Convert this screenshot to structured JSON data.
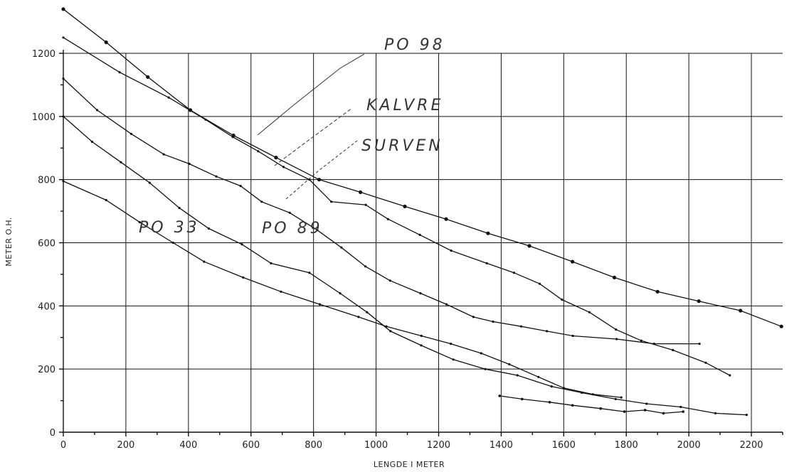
{
  "chart_data": {
    "type": "line",
    "xlabel": "LENGDE I METER",
    "ylabel": "METER O.H.",
    "xlim": [
      0,
      2300
    ],
    "ylim": [
      0,
      1200
    ],
    "x_ticks": [
      "0",
      "200",
      "400",
      "600",
      "800",
      "1000",
      "1200",
      "1400",
      "1600",
      "1800",
      "2000",
      "2200"
    ],
    "y_ticks": [
      "0",
      "200",
      "400",
      "600",
      "800",
      "1000",
      "1200"
    ],
    "grid": true,
    "annotations": [
      "PO 98",
      "KALVRE",
      "SURVEN",
      "PO 33",
      "PO 89"
    ],
    "series": [
      {
        "name": "PO 98",
        "x": [
          0,
          137,
          270,
          406,
          544,
          680,
          818,
          950,
          1092,
          1224,
          1358,
          1490,
          1628,
          1762,
          1900,
          2032,
          2165,
          2296
        ],
        "y": [
          1340,
          1235,
          1125,
          1020,
          940,
          870,
          800,
          760,
          715,
          675,
          630,
          590,
          540,
          490,
          445,
          415,
          385,
          335
        ]
      },
      {
        "name": "KALVRE",
        "x": [
          0,
          180,
          337,
          455,
          542,
          623,
          704,
          787,
          857,
          967,
          1038,
          1140,
          1240,
          1354,
          1441,
          1523,
          1594,
          1682,
          1767,
          1848,
          1949,
          2054,
          2131
        ],
        "y": [
          1250,
          1140,
          1060,
          990,
          935,
          890,
          840,
          800,
          730,
          720,
          675,
          625,
          575,
          535,
          505,
          470,
          420,
          380,
          325,
          290,
          260,
          220,
          180
        ]
      },
      {
        "name": "SURVEN",
        "x": [
          0,
          108,
          217,
          321,
          403,
          489,
          567,
          634,
          724,
          812,
          889,
          966,
          1045,
          1142,
          1225,
          1311,
          1374,
          1464,
          1546,
          1629,
          1769,
          1889,
          2034
        ],
        "y": [
          1120,
          1020,
          945,
          880,
          850,
          810,
          780,
          730,
          695,
          640,
          585,
          525,
          480,
          440,
          405,
          365,
          350,
          335,
          320,
          305,
          295,
          280,
          280
        ]
      },
      {
        "name": "PO 89",
        "x": [
          0,
          92,
          184,
          276,
          371,
          465,
          571,
          664,
          787,
          885,
          971,
          1046,
          1144,
          1247,
          1349,
          1452,
          1561,
          1658,
          1766,
          1865,
          1974,
          2085,
          2185
        ],
        "y": [
          1000,
          920,
          855,
          790,
          710,
          645,
          595,
          535,
          505,
          440,
          380,
          320,
          275,
          230,
          200,
          180,
          145,
          125,
          105,
          90,
          80,
          60,
          55
        ]
      },
      {
        "name": "PO 33",
        "x": [
          0,
          137,
          244,
          351,
          450,
          575,
          696,
          820,
          944,
          1033,
          1145,
          1239,
          1336,
          1426,
          1519,
          1600,
          1693,
          1784
        ],
        "y": [
          795,
          735,
          665,
          600,
          540,
          490,
          445,
          405,
          365,
          335,
          305,
          280,
          250,
          215,
          175,
          140,
          120,
          110
        ]
      },
      {
        "name": "",
        "x": [
          1395,
          1467,
          1555,
          1628,
          1718,
          1794,
          1860,
          1919,
          1982
        ],
        "y": [
          115,
          105,
          95,
          85,
          75,
          65,
          70,
          60,
          65
        ]
      }
    ]
  }
}
